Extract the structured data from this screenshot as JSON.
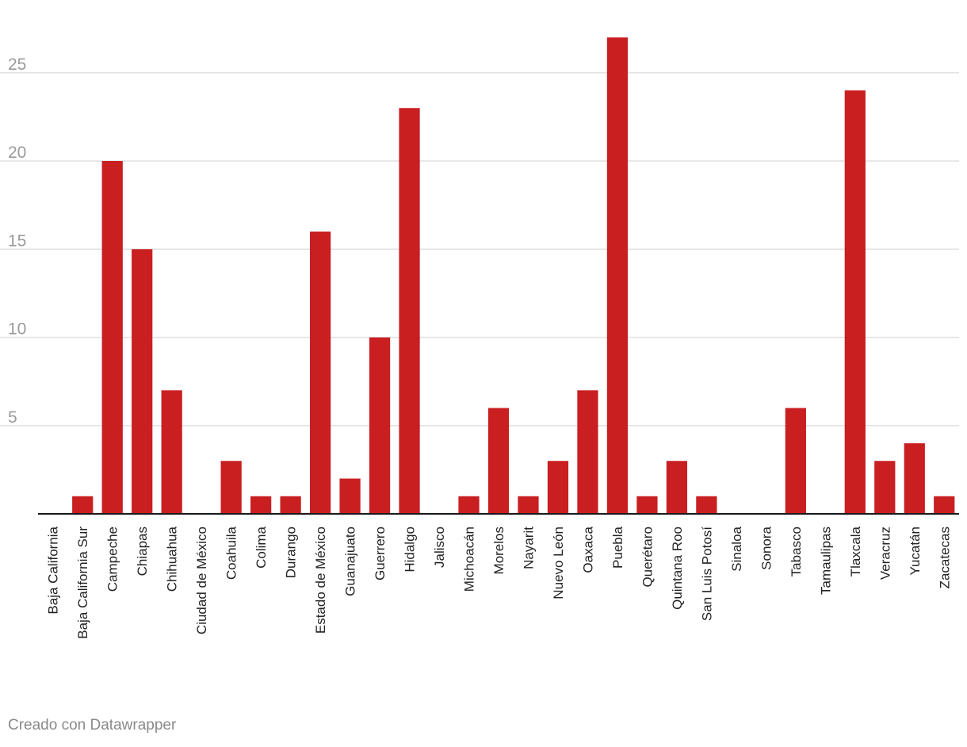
{
  "footer": {
    "credit": "Creado con Datawrapper"
  },
  "chart_data": {
    "type": "bar",
    "title": "",
    "xlabel": "",
    "ylabel": "",
    "ylim": [
      0,
      27
    ],
    "yticks": [
      5,
      10,
      15,
      20,
      25
    ],
    "grid": true,
    "bar_color": "#c91f21",
    "categories": [
      "Baja California",
      "Baja California Sur",
      "Campeche",
      "Chiapas",
      "Chihuahua",
      "Ciudad de México",
      "Coahuila",
      "Colima",
      "Durango",
      "Estado de México",
      "Guanajuato",
      "Guerrero",
      "Hidalgo",
      "Jalisco",
      "Michoacán",
      "Morelos",
      "Nayarit",
      "Nuevo León",
      "Oaxaca",
      "Puebla",
      "Querétaro",
      "Quintana Roo",
      "San Luis Potosí",
      "Sinaloa",
      "Sonora",
      "Tabasco",
      "Tamaulipas",
      "Tlaxcala",
      "Veracruz",
      "Yucatán",
      "Zacatecas"
    ],
    "values": [
      0,
      1,
      20,
      15,
      7,
      0,
      3,
      1,
      1,
      16,
      2,
      10,
      23,
      0,
      1,
      6,
      1,
      3,
      7,
      27,
      1,
      3,
      1,
      0,
      0,
      6,
      0,
      24,
      3,
      4,
      1
    ]
  }
}
